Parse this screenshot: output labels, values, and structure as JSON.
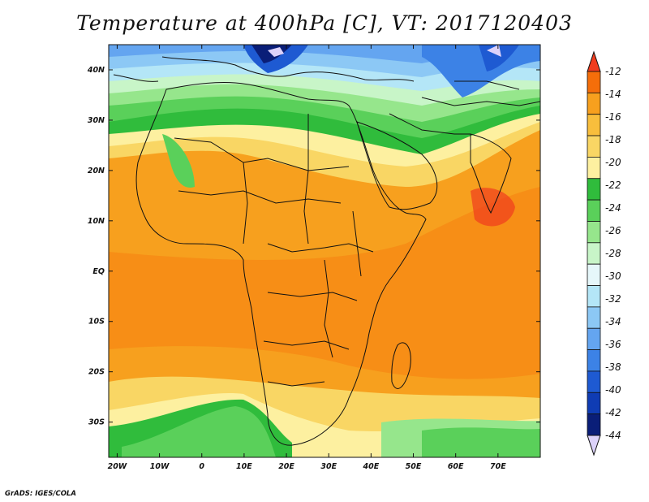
{
  "title": "Temperature at 400hPa [C], VT: 2017120403",
  "credit": "GrADS: IGES/COLA",
  "lat_labels": [
    "40N",
    "30N",
    "20N",
    "10N",
    "EQ",
    "10S",
    "20S",
    "30S"
  ],
  "lat_values": [
    40,
    30,
    20,
    10,
    0,
    -10,
    -20,
    -30
  ],
  "lon_labels": [
    "20W",
    "10W",
    "0",
    "10E",
    "20E",
    "30E",
    "40E",
    "50E",
    "60E",
    "70E"
  ],
  "lon_values": [
    -20,
    -10,
    0,
    10,
    20,
    30,
    40,
    50,
    60,
    70
  ],
  "extent": {
    "lon_min": -22,
    "lon_max": 80,
    "lat_min": -37,
    "lat_max": 45
  },
  "colorbar": {
    "labels": [
      "-12",
      "-14",
      "-16",
      "-18",
      "-20",
      "-22",
      "-24",
      "-26",
      "-28",
      "-30",
      "-32",
      "-34",
      "-36",
      "-38",
      "-40",
      "-42",
      "-44"
    ],
    "colors": [
      "#f03c1e",
      "#f56e0a",
      "#f7a01e",
      "#f8be3c",
      "#f9d664",
      "#fdf0a0",
      "#30bc3c",
      "#5ad05a",
      "#96e68c",
      "#c8f5c8",
      "#e6f7fa",
      "#b4e6f7",
      "#8cc8f5",
      "#64a5f0",
      "#3c82e6",
      "#1e5ad2",
      "#0f3cb4",
      "#0a1e78",
      "#dcd2fa"
    ]
  },
  "fields": {
    "top_arrow_color": "#f03c1e",
    "bottom_arrow_color": "#dcd2fa"
  }
}
